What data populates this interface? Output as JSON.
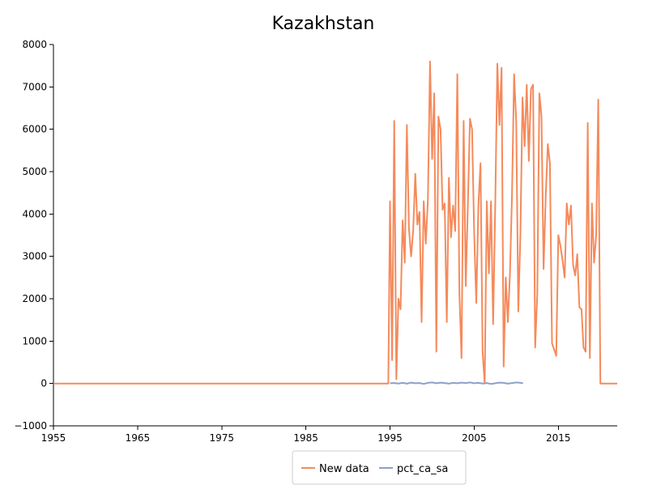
{
  "chart_data": {
    "type": "line",
    "title": "Kazakhstan",
    "xlabel": "",
    "ylabel": "",
    "xlim": [
      1955,
      2022
    ],
    "ylim": [
      -1000,
      8000
    ],
    "x_ticks": [
      1955,
      1965,
      1975,
      1985,
      1995,
      2005,
      2015
    ],
    "x_tick_labels": [
      "1955",
      "1965",
      "1975",
      "1985",
      "1995",
      "2005",
      "2015"
    ],
    "y_ticks": [
      -1000,
      0,
      1000,
      2000,
      3000,
      4000,
      5000,
      6000,
      7000,
      8000
    ],
    "y_tick_labels": [
      "−1000",
      "0",
      "1000",
      "2000",
      "3000",
      "4000",
      "5000",
      "6000",
      "7000",
      "8000"
    ],
    "grid": false,
    "legend_position": "bottom-center",
    "series": [
      {
        "name": "New data",
        "color": "#f58a5b",
        "x": [
          1955,
          1994.8,
          1995,
          1995.25,
          1995.5,
          1995.75,
          1996,
          1996.25,
          1996.5,
          1996.75,
          1997,
          1997.25,
          1997.5,
          1997.75,
          1998,
          1998.25,
          1998.5,
          1998.75,
          1999,
          1999.25,
          1999.5,
          1999.75,
          2000,
          2000.25,
          2000.5,
          2000.75,
          2001,
          2001.25,
          2001.5,
          2001.75,
          2002,
          2002.25,
          2002.5,
          2002.75,
          2003,
          2003.25,
          2003.5,
          2003.75,
          2004,
          2004.25,
          2004.5,
          2004.75,
          2005,
          2005.25,
          2005.5,
          2005.75,
          2006,
          2006.25,
          2006.5,
          2006.75,
          2007,
          2007.25,
          2007.5,
          2007.75,
          2008,
          2008.25,
          2008.5,
          2008.75,
          2009,
          2009.25,
          2009.5,
          2009.75,
          2010,
          2010.25,
          2010.5,
          2010.75,
          2011,
          2011.25,
          2011.5,
          2011.75,
          2012,
          2012.25,
          2012.5,
          2012.75,
          2013,
          2013.25,
          2013.5,
          2013.75,
          2014,
          2014.25,
          2014.5,
          2014.75,
          2015,
          2015.25,
          2015.5,
          2015.75,
          2016,
          2016.25,
          2016.5,
          2016.75,
          2017,
          2017.25,
          2017.5,
          2017.75,
          2018,
          2018.25,
          2018.5,
          2018.75,
          2019,
          2019.25,
          2019.5,
          2019.75,
          2020,
          2020.25,
          2020.5,
          2020.75,
          2021,
          2021.25,
          2021.5,
          2022
        ],
        "y": [
          0,
          0,
          4300,
          550,
          6200,
          100,
          2000,
          1750,
          3850,
          2850,
          6100,
          3650,
          3000,
          3600,
          4950,
          3750,
          4050,
          1450,
          4300,
          3300,
          4350,
          7600,
          5300,
          6850,
          750,
          6300,
          6000,
          4100,
          4250,
          1450,
          4850,
          3450,
          4200,
          3600,
          7300,
          2100,
          600,
          6200,
          2300,
          4200,
          6250,
          6000,
          3550,
          1900,
          4200,
          5200,
          750,
          0,
          4300,
          2600,
          4300,
          1400,
          4200,
          7550,
          6100,
          7450,
          400,
          2500,
          1450,
          2600,
          4450,
          7300,
          6200,
          1700,
          3550,
          6750,
          5600,
          7050,
          5250,
          6950,
          7050,
          850,
          2100,
          6850,
          6300,
          2700,
          4400,
          5650,
          5200,
          950,
          800,
          650,
          3500,
          3250,
          2900,
          2500,
          4250,
          3750,
          4200,
          2800,
          2550,
          3050,
          1800,
          1750,
          850,
          750,
          6150,
          600,
          4250,
          2850,
          3500,
          6700,
          0,
          0,
          0,
          0,
          0,
          0,
          0,
          0
        ]
      },
      {
        "name": "pct_ca_sa",
        "color": "#8da0cb",
        "x": [
          1995,
          1995.5,
          1996,
          1996.5,
          1997,
          1997.5,
          1998,
          1998.5,
          1999,
          1999.5,
          2000,
          2000.5,
          2001,
          2001.5,
          2002,
          2002.5,
          2003,
          2003.5,
          2004,
          2004.5,
          2005,
          2005.5,
          2006,
          2006.5,
          2007,
          2007.5,
          2008,
          2008.5,
          2009,
          2009.5,
          2010,
          2010.5,
          2010.8
        ],
        "y": [
          5,
          10,
          0,
          15,
          -5,
          20,
          5,
          10,
          -10,
          15,
          25,
          5,
          20,
          10,
          -5,
          15,
          5,
          20,
          10,
          25,
          5,
          15,
          0,
          10,
          -10,
          5,
          20,
          15,
          -5,
          10,
          25,
          15,
          5
        ]
      }
    ]
  }
}
